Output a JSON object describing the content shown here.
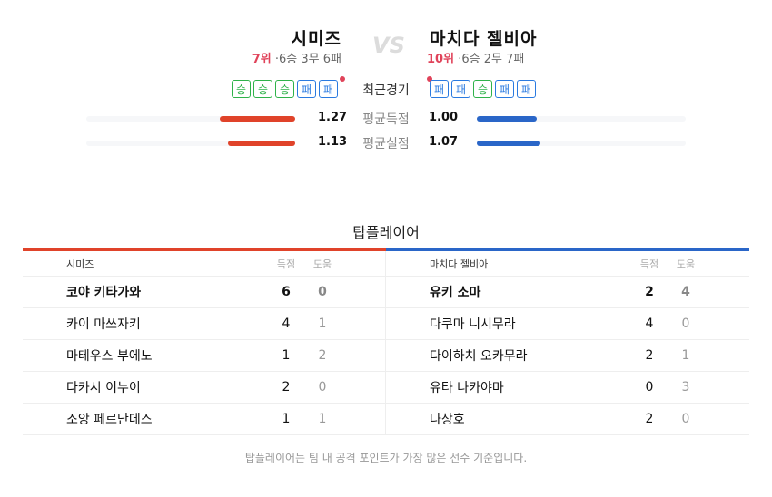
{
  "home": {
    "name": "시미즈",
    "rank": "7위",
    "record": "6승 3무 6패",
    "form": [
      "승",
      "승",
      "승",
      "패",
      "패"
    ],
    "avg_scored": 1.27,
    "avg_conceded": 1.13,
    "color": "#e0432a"
  },
  "away": {
    "name": "마치다 젤비아",
    "rank": "10위",
    "record": "6승 2무 7패",
    "form": [
      "패",
      "패",
      "승",
      "패",
      "패"
    ],
    "avg_scored": 1.0,
    "avg_conceded": 1.07,
    "color": "#2a66c8"
  },
  "vs": "VS",
  "sep": "·",
  "labels": {
    "recent": "최근경기",
    "avg_scored": "평균득점",
    "avg_conceded": "평균실점"
  },
  "top_players": {
    "title": "탑플레이어",
    "col_goals": "득점",
    "col_assists": "도움",
    "home": {
      "team": "시미즈",
      "players": [
        {
          "name": "코야 키타가와",
          "goals": "6",
          "assists": "0"
        },
        {
          "name": "카이 마쓰자키",
          "goals": "4",
          "assists": "1"
        },
        {
          "name": "마테우스 부에노",
          "goals": "1",
          "assists": "2"
        },
        {
          "name": "다카시 이누이",
          "goals": "2",
          "assists": "0"
        },
        {
          "name": "조앙 페르난데스",
          "goals": "1",
          "assists": "1"
        }
      ]
    },
    "away": {
      "team": "마치다 젤비아",
      "players": [
        {
          "name": "유키 소마",
          "goals": "2",
          "assists": "4"
        },
        {
          "name": "다쿠마 니시무라",
          "goals": "4",
          "assists": "0"
        },
        {
          "name": "다이하치 오카무라",
          "goals": "2",
          "assists": "1"
        },
        {
          "name": "유타 나카야마",
          "goals": "0",
          "assists": "3"
        },
        {
          "name": "나상호",
          "goals": "2",
          "assists": "0"
        }
      ]
    },
    "note": "탑플레이어는 팀 내 공격 포인트가 가장 많은 선수 기준입니다."
  }
}
